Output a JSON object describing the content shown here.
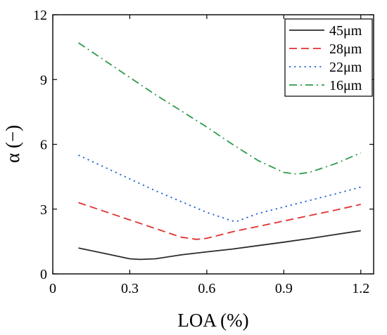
{
  "chart_data": {
    "type": "line",
    "title": "",
    "xlabel": "LOA (%)",
    "ylabel": "α (−)",
    "xlim": [
      0,
      1.25
    ],
    "ylim": [
      0,
      12
    ],
    "xticks": [
      0,
      0.3,
      0.6,
      0.9,
      1.2
    ],
    "xtick_labels": [
      "0",
      "0.3",
      "0.6",
      "0.9",
      "1.2"
    ],
    "yticks": [
      0,
      3,
      6,
      9,
      12
    ],
    "ytick_labels": [
      "0",
      "3",
      "6",
      "9",
      "12"
    ],
    "grid": false,
    "legend_position": "top-right",
    "series": [
      {
        "name": "45μm",
        "color": "#2b2b2b",
        "dash": "solid",
        "x": [
          0.1,
          0.2,
          0.3,
          0.34,
          0.4,
          0.5,
          0.6,
          0.7,
          0.8,
          0.9,
          1.0,
          1.1,
          1.2
        ],
        "y": [
          1.2,
          0.95,
          0.7,
          0.67,
          0.7,
          0.88,
          1.02,
          1.15,
          1.31,
          1.47,
          1.64,
          1.82,
          2.0
        ]
      },
      {
        "name": "28μm",
        "color": "#e23030",
        "dash": "dashed",
        "x": [
          0.1,
          0.2,
          0.3,
          0.4,
          0.5,
          0.56,
          0.6,
          0.7,
          0.8,
          0.9,
          1.0,
          1.1,
          1.2
        ],
        "y": [
          3.3,
          2.9,
          2.5,
          2.1,
          1.7,
          1.6,
          1.65,
          1.95,
          2.2,
          2.45,
          2.7,
          2.95,
          3.22
        ]
      },
      {
        "name": "22μm",
        "color": "#1f5fd6",
        "dash": "dotted",
        "x": [
          0.1,
          0.2,
          0.3,
          0.4,
          0.5,
          0.6,
          0.7,
          0.72,
          0.8,
          0.9,
          1.0,
          1.1,
          1.2
        ],
        "y": [
          5.5,
          4.95,
          4.4,
          3.85,
          3.35,
          2.85,
          2.45,
          2.45,
          2.8,
          3.1,
          3.4,
          3.7,
          4.02
        ]
      },
      {
        "name": "16μm",
        "color": "#2e9a4a",
        "dash": "dashdot",
        "x": [
          0.1,
          0.2,
          0.3,
          0.4,
          0.5,
          0.6,
          0.7,
          0.8,
          0.9,
          0.95,
          1.0,
          1.1,
          1.2
        ],
        "y": [
          10.7,
          9.9,
          9.1,
          8.3,
          7.55,
          6.8,
          6.0,
          5.25,
          4.7,
          4.62,
          4.7,
          5.1,
          5.6
        ]
      }
    ]
  }
}
